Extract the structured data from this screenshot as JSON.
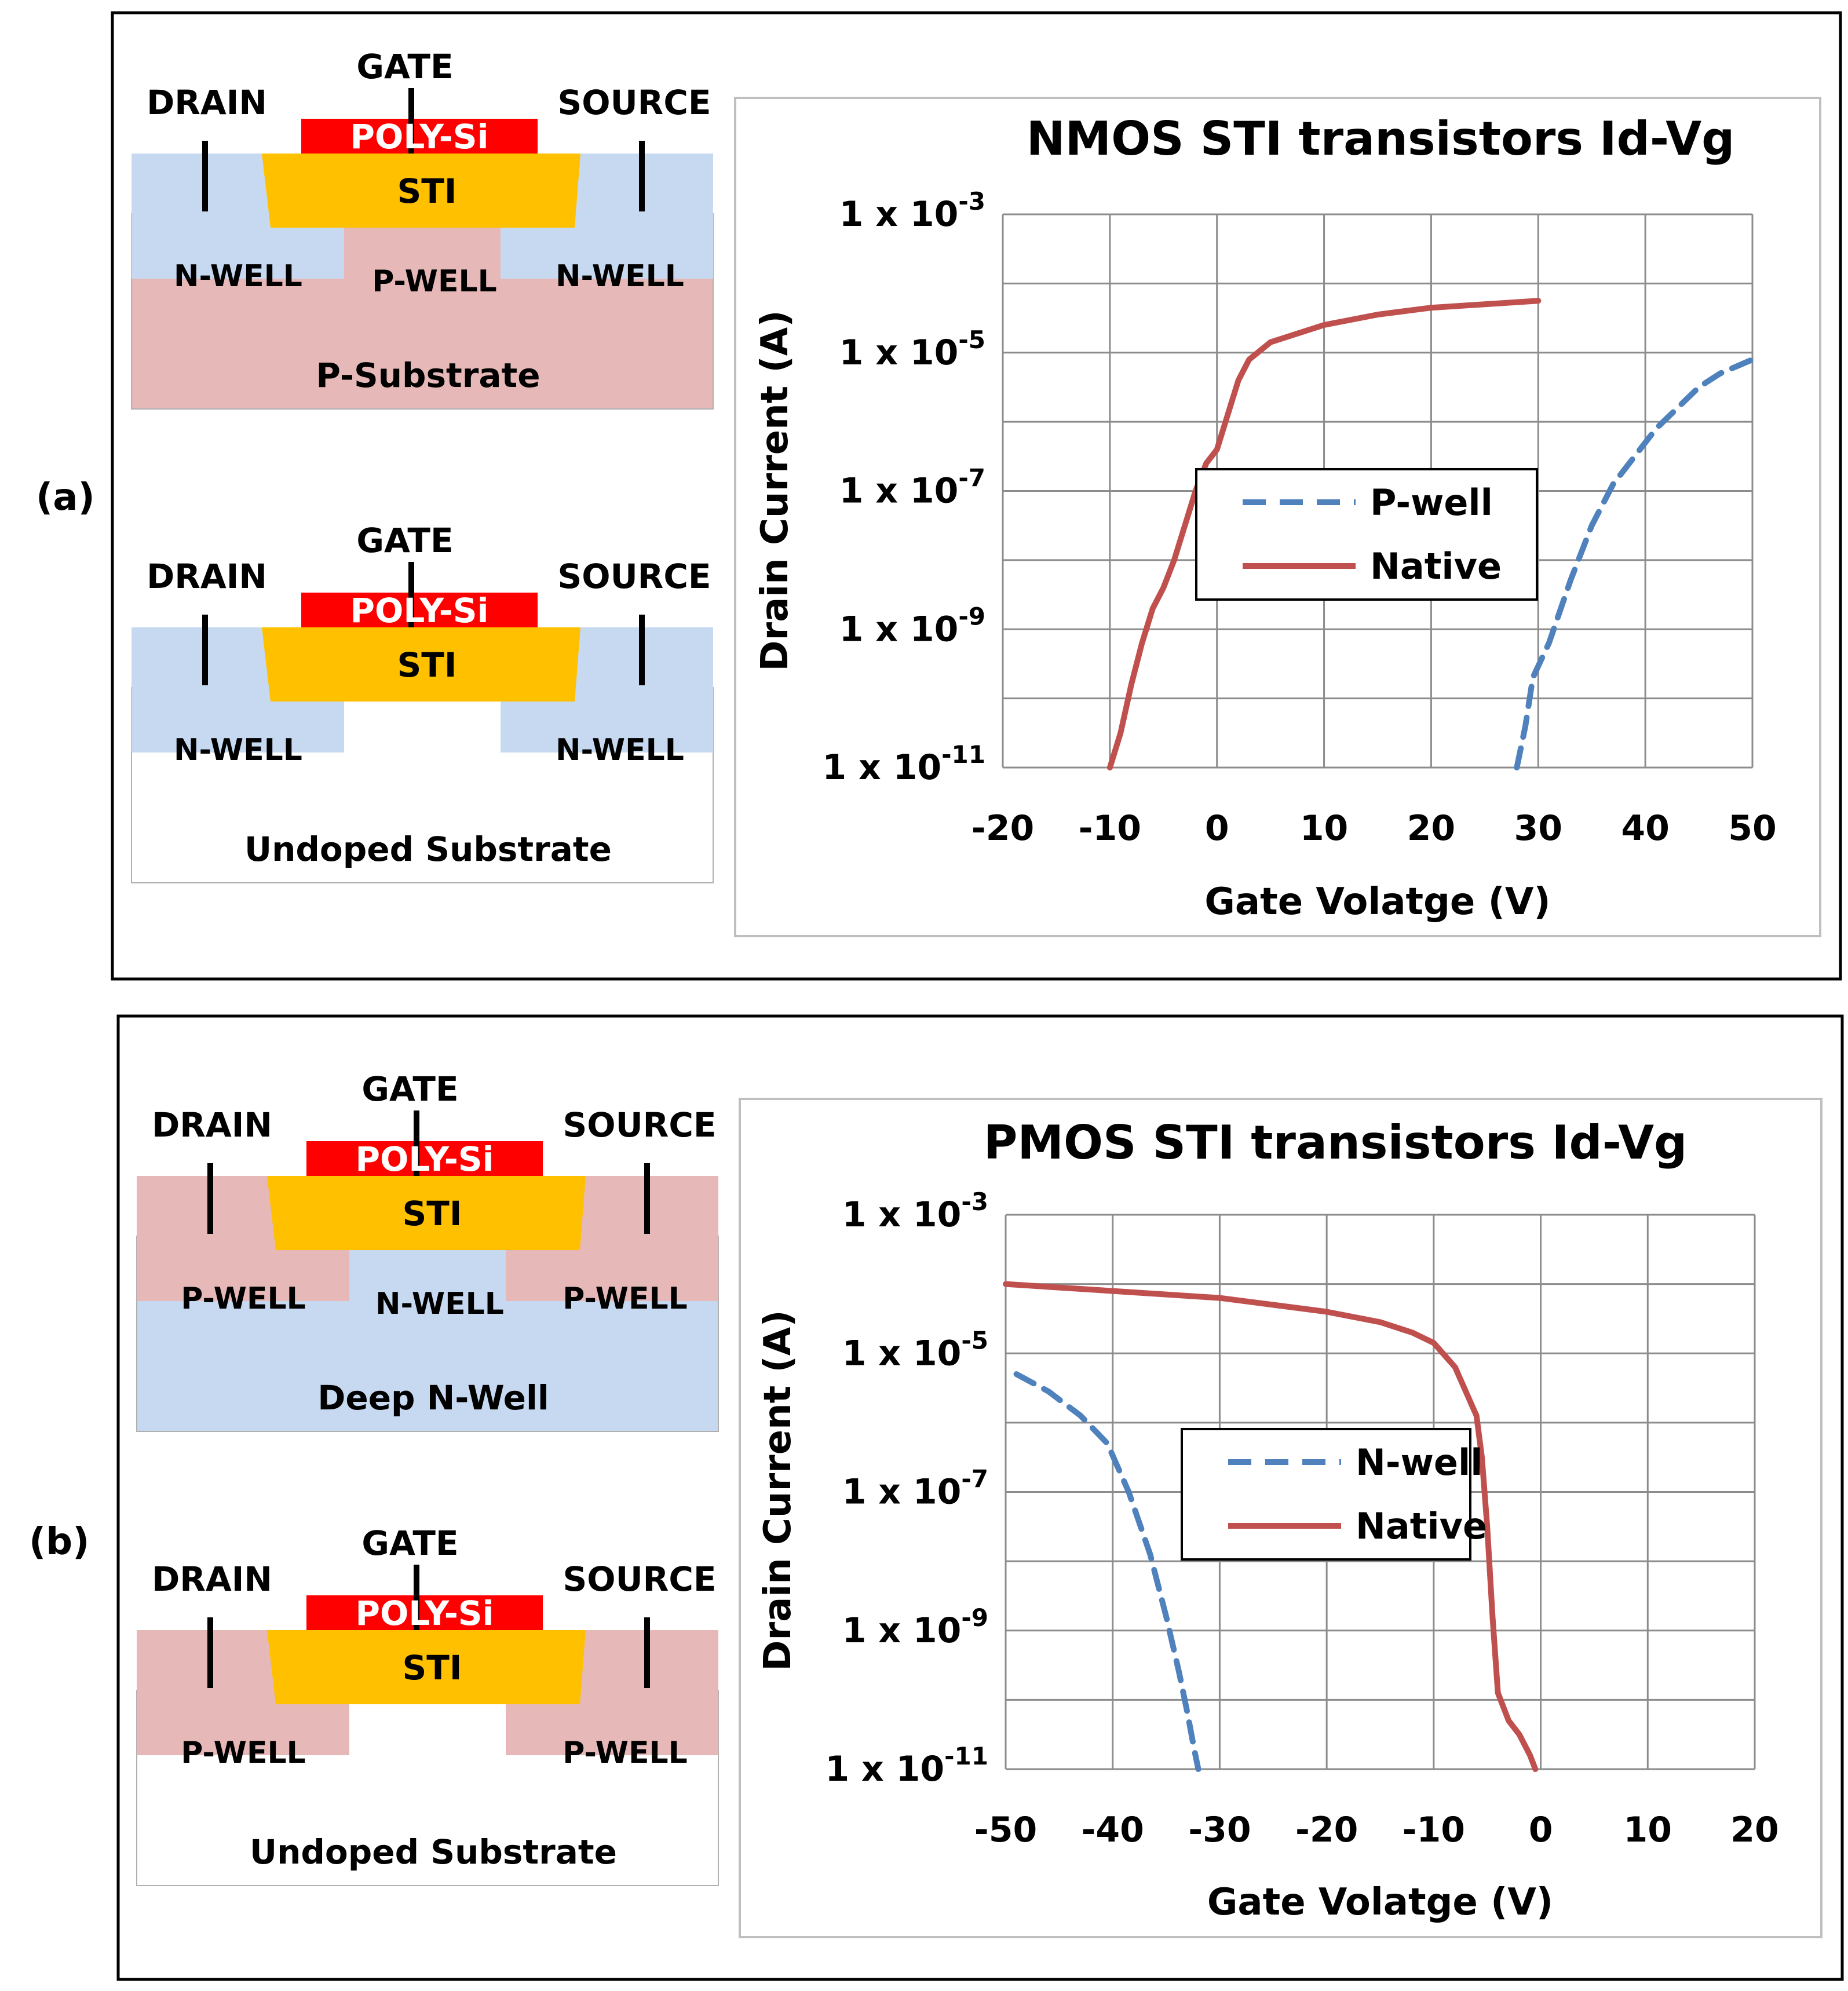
{
  "panels": [
    {
      "label": "(a)",
      "diagrams": [
        {
          "terminals": {
            "drain": "DRAIN",
            "gate": "GATE",
            "source": "SOURCE"
          },
          "gate_material": "POLY-Si",
          "isolation": "STI",
          "left_region": "N-WELL",
          "center_region": "P-WELL",
          "right_region": "N-WELL",
          "substrate": "P-Substrate",
          "colors": {
            "side": "#c6d9f1",
            "center": "#e6b9b8",
            "substrate": "#e6b9b8"
          }
        },
        {
          "terminals": {
            "drain": "DRAIN",
            "gate": "GATE",
            "source": "SOURCE"
          },
          "gate_material": "POLY-Si",
          "isolation": "STI",
          "left_region": "N-WELL",
          "center_region": "",
          "right_region": "N-WELL",
          "substrate": "Undoped Substrate",
          "colors": {
            "side": "#c6d9f1",
            "center": "#ffffff",
            "substrate": "#ffffff"
          }
        }
      ]
    },
    {
      "label": "(b)",
      "diagrams": [
        {
          "terminals": {
            "drain": "DRAIN",
            "gate": "GATE",
            "source": "SOURCE"
          },
          "gate_material": "POLY-Si",
          "isolation": "STI",
          "left_region": "P-WELL",
          "center_region": "N-WELL",
          "right_region": "P-WELL",
          "substrate": "Deep N-Well",
          "colors": {
            "side": "#e6b9b8",
            "center": "#c6d9f1",
            "substrate": "#c6d9f1"
          }
        },
        {
          "terminals": {
            "drain": "DRAIN",
            "gate": "GATE",
            "source": "SOURCE"
          },
          "gate_material": "POLY-Si",
          "isolation": "STI",
          "left_region": "P-WELL",
          "center_region": "",
          "right_region": "P-WELL",
          "substrate": "Undoped Substrate",
          "colors": {
            "side": "#e6b9b8",
            "center": "#ffffff",
            "substrate": "#ffffff"
          }
        }
      ]
    }
  ],
  "device_colors": {
    "poly": "#ff0000",
    "poly_text": "#ffffff",
    "sti": "#ffc000"
  },
  "chart_data": [
    {
      "type": "line",
      "title": "NMOS STI transistors Id-Vg",
      "xlabel": "Gate Volatge (V)",
      "ylabel": "Drain Current  (A)",
      "xlim": [
        -20,
        50
      ],
      "xticks": [
        "-20",
        "-10",
        "0",
        "10",
        "20",
        "30",
        "40",
        "50"
      ],
      "xtick_values": [
        -20,
        -10,
        0,
        10,
        20,
        30,
        40,
        50
      ],
      "ylim_log10": [
        -11,
        -3
      ],
      "yticks": [
        {
          "exp": -3,
          "base": "1 x 10",
          "sup": "-3"
        },
        {
          "exp": -5,
          "base": "1 x 10",
          "sup": "-5"
        },
        {
          "exp": -7,
          "base": "1 x 10",
          "sup": "-7"
        },
        {
          "exp": -9,
          "base": "1 x 10",
          "sup": "-9"
        },
        {
          "exp": -11,
          "base": "1 x 10",
          "sup": "-11"
        }
      ],
      "grid": true,
      "legend_position": "center",
      "series": [
        {
          "name": "P-well",
          "color": "#4f81bd",
          "dash": true,
          "x": [
            28,
            28.8,
            29.5,
            31,
            33,
            35,
            37,
            39,
            41,
            43,
            45,
            47,
            50
          ],
          "log10_y": [
            -11,
            -10.4,
            -9.7,
            -9.2,
            -8.3,
            -7.5,
            -6.9,
            -6.5,
            -6.1,
            -5.8,
            -5.5,
            -5.3,
            -5.1
          ]
        },
        {
          "name": "Native",
          "color": "#c0504d",
          "dash": false,
          "x": [
            -10,
            -9,
            -8,
            -7,
            -6,
            -5,
            -4,
            -3,
            -2,
            -1,
            0,
            1,
            2,
            3,
            5,
            8,
            10,
            15,
            20,
            25,
            30
          ],
          "log10_y": [
            -11,
            -10.5,
            -9.8,
            -9.2,
            -8.7,
            -8.4,
            -8.0,
            -7.5,
            -7.0,
            -6.6,
            -6.4,
            -5.9,
            -5.4,
            -5.1,
            -4.85,
            -4.7,
            -4.6,
            -4.45,
            -4.35,
            -4.3,
            -4.25
          ]
        }
      ]
    },
    {
      "type": "line",
      "title": "PMOS STI transistors Id-Vg",
      "xlabel": "Gate Volatge (V)",
      "ylabel": "Drain Current (A)",
      "xlim": [
        -50,
        20
      ],
      "xticks": [
        "-50",
        "-40",
        "-30",
        "-20",
        "-10",
        "0",
        "10",
        "20"
      ],
      "xtick_values": [
        -50,
        -40,
        -30,
        -20,
        -10,
        0,
        10,
        20
      ],
      "ylim_log10": [
        -11,
        -3
      ],
      "yticks": [
        {
          "exp": -3,
          "base": "1 x 10",
          "sup": "-3"
        },
        {
          "exp": -5,
          "base": "1 x 10",
          "sup": "-5"
        },
        {
          "exp": -7,
          "base": "1 x 10",
          "sup": "-7"
        },
        {
          "exp": -9,
          "base": "1 x 10",
          "sup": "-9"
        },
        {
          "exp": -11,
          "base": "1 x 10",
          "sup": "-11"
        }
      ],
      "grid": true,
      "legend_position": "center",
      "series": [
        {
          "name": "N-well",
          "color": "#4f81bd",
          "dash": true,
          "x": [
            -49,
            -46,
            -43,
            -40.5,
            -38.5,
            -36.5,
            -35,
            -33.8,
            -33,
            -32.4,
            -32
          ],
          "log10_y": [
            -5.3,
            -5.55,
            -5.9,
            -6.3,
            -7.0,
            -7.9,
            -8.8,
            -9.6,
            -10.2,
            -10.7,
            -11
          ]
        },
        {
          "name": "Native",
          "color": "#c0504d",
          "dash": false,
          "x": [
            -50,
            -45,
            -40,
            -35,
            -30,
            -25,
            -20,
            -15,
            -12,
            -10,
            -8,
            -6,
            -5.5,
            -5,
            -4.5,
            -4,
            -3,
            -2,
            -1,
            -0.5
          ],
          "log10_y": [
            -4.0,
            -4.05,
            -4.1,
            -4.15,
            -4.2,
            -4.3,
            -4.4,
            -4.55,
            -4.7,
            -4.85,
            -5.2,
            -5.9,
            -6.5,
            -7.5,
            -8.8,
            -9.9,
            -10.3,
            -10.5,
            -10.8,
            -11
          ]
        }
      ]
    }
  ]
}
